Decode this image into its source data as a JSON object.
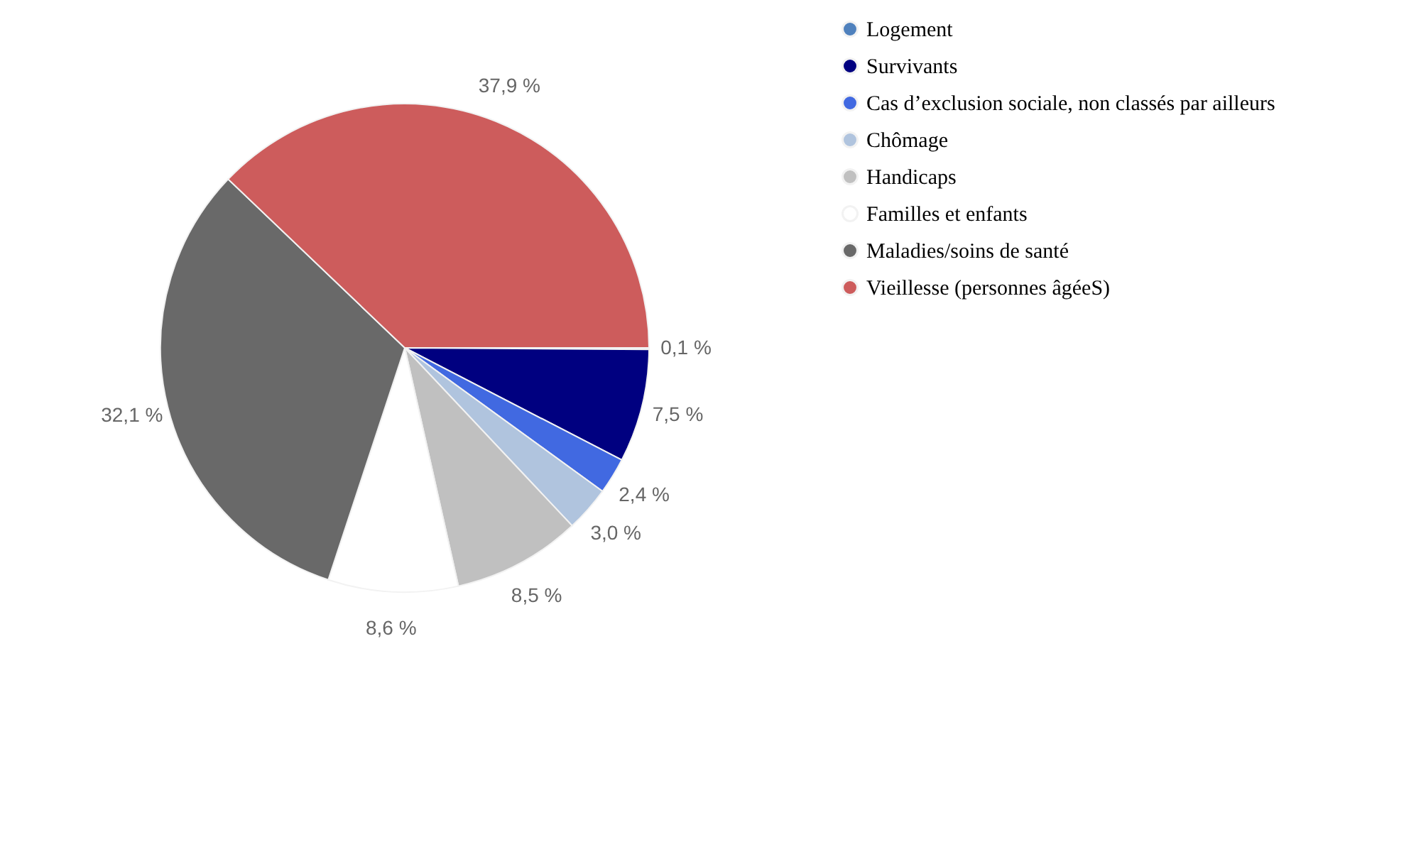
{
  "chart_data": {
    "type": "pie",
    "categories": [
      "Logement",
      "Survivants",
      "Cas d’exclusion sociale, non classés par ailleurs",
      "Chômage",
      "Handicaps",
      "Familles et enfants",
      "Maladies/soins de santé",
      "Vieillesse (personnes âgéeS)"
    ],
    "values": [
      0.1,
      7.5,
      2.4,
      3.0,
      8.5,
      8.6,
      32.1,
      37.9
    ],
    "colors": [
      "#4f81bd",
      "#000080",
      "#4169e1",
      "#b0c4de",
      "#c0c0c0",
      "#ffffff",
      "#696969",
      "#cd5c5c"
    ],
    "value_labels": [
      "0,1 %",
      "7,5 %",
      "2,4 %",
      "3,0 %",
      "8,5 %",
      "8,6 %",
      "32,1 %",
      "37,9 %"
    ],
    "legend": "right"
  }
}
